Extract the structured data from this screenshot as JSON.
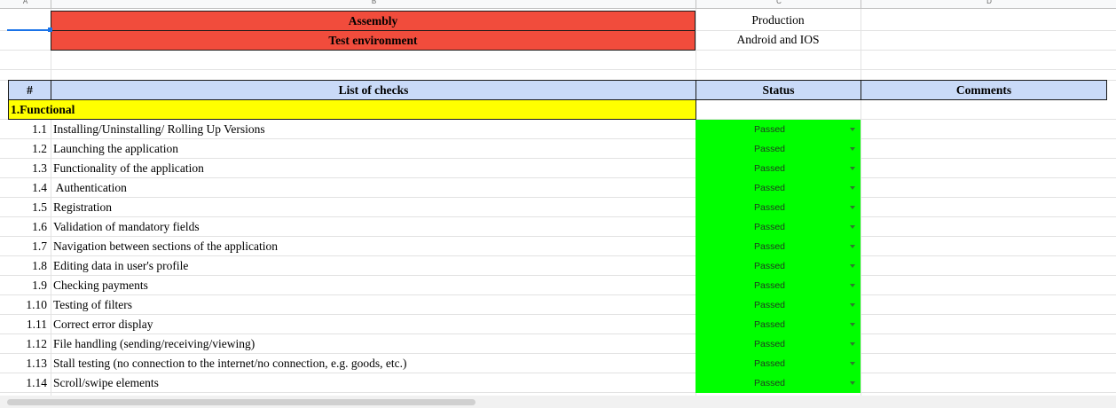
{
  "columns": [
    {
      "id": "col-a",
      "label": "A"
    },
    {
      "id": "col-b",
      "label": "B"
    },
    {
      "id": "col-c",
      "label": "C"
    },
    {
      "id": "col-d",
      "label": "D"
    }
  ],
  "info": {
    "assembly_label": "Assembly",
    "assembly_value": "Production",
    "env_label": "Test environment",
    "env_value": "Android and IOS"
  },
  "table": {
    "headers": {
      "num": "#",
      "checks": "List of checks",
      "status": "Status",
      "comments": "Comments"
    },
    "section_title": "1.Functional",
    "rows": [
      {
        "num": "1.1",
        "check": "Installing/Uninstalling/ Rolling Up Versions",
        "status": "Passed"
      },
      {
        "num": "1.2",
        "check": "Launching the application",
        "status": "Passed"
      },
      {
        "num": "1.3",
        "check": "Functionality of the application",
        "status": "Passed"
      },
      {
        "num": "1.4",
        "check": " Authentication",
        "status": "Passed"
      },
      {
        "num": "1.5",
        "check": "Registration",
        "status": "Passed"
      },
      {
        "num": "1.6",
        "check": "Validation of mandatory fields",
        "status": "Passed"
      },
      {
        "num": "1.7",
        "check": "Navigation between sections of the application",
        "status": "Passed"
      },
      {
        "num": "1.8",
        "check": "Editing data in user's profile",
        "status": "Passed"
      },
      {
        "num": "1.9",
        "check": "Checking payments",
        "status": "Passed"
      },
      {
        "num": "1.10",
        "check": "Testing of filters",
        "status": "Passed"
      },
      {
        "num": "1.11",
        "check": "Correct error display",
        "status": "Passed"
      },
      {
        "num": "1.12",
        "check": "File handling (sending/receiving/viewing)",
        "status": "Passed"
      },
      {
        "num": "1.13",
        "check": "Stall testing (no connection to the internet/no connection, e.g. goods, etc.)",
        "status": "Passed"
      },
      {
        "num": "1.14",
        "check": "Scroll/swipe elements",
        "status": "Passed"
      }
    ]
  },
  "colors": {
    "red_header": "#f14c3c",
    "blue_header": "#c9daf8",
    "section_yellow": "#ffff00",
    "status_green": "#00ff00"
  }
}
